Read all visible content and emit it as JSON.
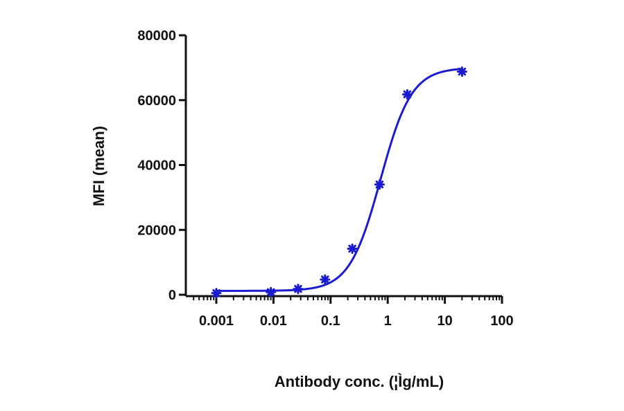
{
  "chart_data": {
    "type": "scatter",
    "title": "",
    "xlabel": "Antibody conc. (¦Ìg/mL)",
    "ylabel": "MFI (mean)",
    "x_scale": "log",
    "xlim": [
      0.001,
      100
    ],
    "ylim": [
      0,
      80000
    ],
    "x_ticks": [
      "0.001",
      "0.01",
      "0.1",
      "1",
      "10",
      "100"
    ],
    "y_ticks": [
      "0",
      "20000",
      "40000",
      "60000",
      "80000"
    ],
    "grid": false,
    "legend": "none",
    "series": [
      {
        "values": [
          {
            "x": 0.001,
            "y": 500
          },
          {
            "x": 0.009,
            "y": 800
          },
          {
            "x": 0.027,
            "y": 1800
          },
          {
            "x": 0.08,
            "y": 4700
          },
          {
            "x": 0.24,
            "y": 14200
          },
          {
            "x": 0.72,
            "y": 34000
          },
          {
            "x": 2.2,
            "y": 61800
          },
          {
            "x": 20,
            "y": 68800
          }
        ],
        "color": "#1a1ad0",
        "marker": "asterisk",
        "fit_curve": {
          "model": "4PL",
          "bottom": 1200,
          "top": 70000,
          "ec50": 0.75,
          "hill": 1.6
        }
      }
    ]
  }
}
